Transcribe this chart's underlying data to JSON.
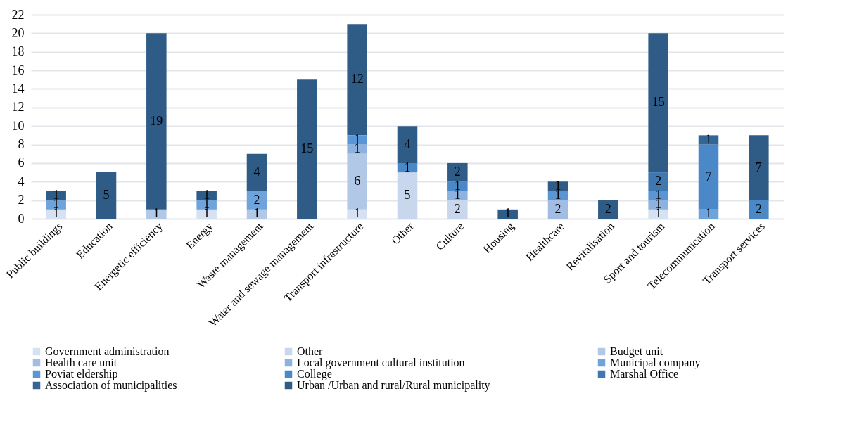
{
  "chart_data": {
    "type": "bar",
    "stacked": true,
    "data_labels": true,
    "grid": "y",
    "legend": "bottom",
    "categories": [
      "Public buildings",
      "Education",
      "Energetic efficiency",
      "Energy",
      "Waste management",
      "Water and sewage management",
      "Transport infrastructure",
      "Other",
      "Culture",
      "Housing",
      "Healthcare",
      "Revitalisation",
      "Sport and tourism",
      "Telecommunication",
      "Transport services"
    ],
    "ylim": [
      0,
      22
    ],
    "yticks": [
      0,
      2,
      4,
      6,
      8,
      10,
      12,
      14,
      16,
      18,
      20,
      22
    ],
    "series": [
      {
        "name": "Government administration",
        "color": "#d6e1f1",
        "values": [
          1,
          null,
          null,
          1,
          null,
          null,
          1,
          null,
          null,
          null,
          null,
          null,
          1,
          null,
          null
        ]
      },
      {
        "name": "Other",
        "color": "#c8d7ed",
        "values": [
          null,
          null,
          null,
          null,
          null,
          null,
          null,
          5,
          2,
          null,
          null,
          null,
          null,
          null,
          null
        ]
      },
      {
        "name": "Budget unit",
        "color": "#b1c8e7",
        "values": [
          null,
          null,
          1,
          null,
          1,
          null,
          6,
          null,
          null,
          null,
          null,
          null,
          null,
          null,
          null
        ]
      },
      {
        "name": "Health care unit",
        "color": "#a2bde3",
        "values": [
          null,
          null,
          null,
          null,
          null,
          null,
          null,
          null,
          null,
          null,
          2,
          null,
          null,
          null,
          null
        ]
      },
      {
        "name": "Local government cultural institution",
        "color": "#8db2e0",
        "values": [
          null,
          null,
          null,
          null,
          null,
          null,
          1,
          null,
          1,
          null,
          null,
          null,
          1,
          null,
          null
        ]
      },
      {
        "name": "Municipal company",
        "color": "#6fa3dc",
        "values": [
          1,
          null,
          null,
          1,
          2,
          null,
          null,
          null,
          null,
          null,
          null,
          null,
          null,
          1,
          null
        ]
      },
      {
        "name": "Poviat eldership",
        "color": "#5a96d5",
        "values": [
          null,
          null,
          null,
          null,
          null,
          null,
          1,
          null,
          null,
          null,
          1,
          null,
          1,
          null,
          null
        ]
      },
      {
        "name": "College",
        "color": "#4a88c8",
        "values": [
          null,
          null,
          null,
          null,
          null,
          null,
          null,
          1,
          1,
          null,
          null,
          null,
          null,
          7,
          2
        ]
      },
      {
        "name": "Marshal Office",
        "color": "#3f77b0",
        "values": [
          null,
          null,
          null,
          null,
          null,
          null,
          null,
          null,
          null,
          null,
          null,
          null,
          2,
          null,
          null
        ]
      },
      {
        "name": "Association of municipalities",
        "color": "#356594",
        "values": [
          null,
          null,
          null,
          null,
          null,
          null,
          null,
          null,
          null,
          null,
          null,
          null,
          null,
          1,
          null
        ]
      },
      {
        "name": "Urban /Urban and rural/Rural municipality",
        "color": "#2f5b87",
        "values": [
          1,
          5,
          19,
          1,
          4,
          15,
          12,
          4,
          2,
          1,
          1,
          2,
          15,
          null,
          7
        ]
      }
    ]
  }
}
